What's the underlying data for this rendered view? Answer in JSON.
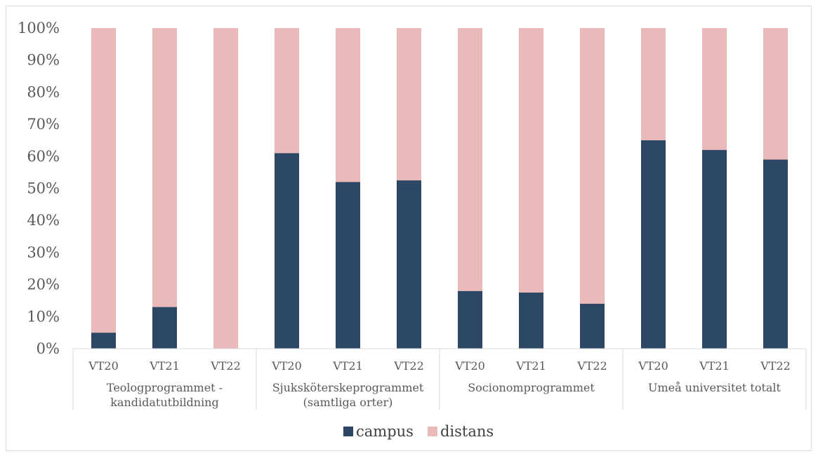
{
  "chart_data": {
    "type": "bar",
    "stacked": true,
    "percent_stacked": true,
    "groups": [
      {
        "label": "Teologprogrammet -\nkandidatutbildning",
        "categories": [
          "VT20",
          "VT21",
          "VT22"
        ]
      },
      {
        "label": "Sjuksköterskeprogrammet\n(samtliga orter)",
        "categories": [
          "VT20",
          "VT21",
          "VT22"
        ]
      },
      {
        "label": "Socionomprogrammet",
        "categories": [
          "VT20",
          "VT21",
          "VT22"
        ]
      },
      {
        "label": "Umeå universitet totalt",
        "categories": [
          "VT20",
          "VT21",
          "VT22"
        ]
      }
    ],
    "series": [
      {
        "name": "campus",
        "color": "#2b4764",
        "values": [
          5,
          13,
          0,
          61,
          52,
          52.5,
          18,
          17.5,
          14,
          65,
          62,
          59
        ]
      },
      {
        "name": "distans",
        "color": "#eababa",
        "values": [
          95,
          87,
          100,
          39,
          48,
          47.5,
          82,
          82.5,
          86,
          35,
          38,
          41
        ]
      }
    ],
    "yticks": [
      "0%",
      "10%",
      "20%",
      "30%",
      "40%",
      "50%",
      "60%",
      "70%",
      "80%",
      "90%",
      "100%"
    ],
    "ylim": [
      0,
      100
    ],
    "grid": false,
    "legend": "bottom",
    "axis_color": "#d9d9d9"
  }
}
